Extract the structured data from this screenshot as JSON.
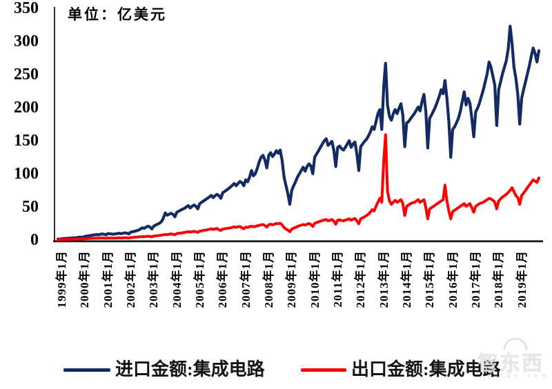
{
  "chart_data": {
    "type": "line",
    "unit_label": "单位：亿美元",
    "ylabel": "",
    "xlabel": "",
    "ylim": [
      0,
      350
    ],
    "y_ticks": [
      0,
      50,
      100,
      150,
      200,
      250,
      300,
      350
    ],
    "grid": "off",
    "legend_position": "bottom",
    "x_frequency": "monthly",
    "x_start": "1999年1月",
    "x_end": "2019年12月",
    "x_tick_labels": [
      "1999年1月",
      "2000年1月",
      "2001年1月",
      "2002年1月",
      "2003年1月",
      "2004年1月",
      "2005年1月",
      "2006年1月",
      "2007年1月",
      "2008年1月",
      "2009年1月",
      "2010年1月",
      "2011年1月",
      "2012年1月",
      "2013年1月",
      "2014年1月",
      "2015年1月",
      "2016年1月",
      "2017年1月",
      "2018年1月",
      "2019年1月"
    ],
    "series": [
      {
        "name": "进口金额:集成电路",
        "color": "#132a63",
        "values": [
          2.5,
          2.3,
          3,
          3.2,
          3.4,
          3.6,
          3.9,
          4.1,
          4.5,
          4.3,
          4.8,
          5.2,
          5.5,
          5.2,
          6.5,
          7,
          7.4,
          7.8,
          8.3,
          8.8,
          9.3,
          8.9,
          9.6,
          10.2,
          9.8,
          8.9,
          10.8,
          10.4,
          10.1,
          9.9,
          10.3,
          10.7,
          11.2,
          10.5,
          11.3,
          11.9,
          11.2,
          10.3,
          13,
          13.6,
          14.3,
          15,
          16,
          17.5,
          19.5,
          18.5,
          20.5,
          22,
          20.5,
          17.7,
          22,
          23.5,
          25,
          26.5,
          29,
          34,
          42,
          38.5,
          40,
          41.5,
          40,
          36,
          43,
          44.5,
          46,
          47.5,
          49,
          51,
          53,
          49.5,
          52,
          54,
          52,
          48,
          56,
          58,
          60,
          62,
          64,
          66,
          68.5,
          65,
          68,
          70,
          68,
          64,
          72.5,
          74.5,
          76.5,
          78.5,
          81,
          83.5,
          86.5,
          83,
          86.5,
          89.5,
          87.5,
          83,
          92,
          89,
          96,
          106,
          98,
          101,
          109,
          119,
          126,
          129,
          122,
          110,
          129,
          133,
          127,
          131,
          136,
          132,
          137,
          121,
          96,
          83,
          71,
          55,
          76,
          83,
          89,
          96,
          101,
          106,
          111,
          105,
          112,
          116,
          113,
          101,
          126,
          131,
          136,
          141,
          146,
          151,
          154,
          144,
          147,
          150,
          136,
          112,
          141,
          143,
          139,
          137,
          141,
          146,
          151,
          141,
          146,
          149,
          131,
          106,
          142,
          146,
          150,
          153,
          158,
          164,
          172,
          168,
          180,
          192,
          198,
          168,
          232,
          268,
          205,
          188,
          182,
          192,
          198,
          192,
          200,
          207,
          190,
          142,
          178,
          180,
          184,
          188,
          192,
          197,
          202,
          196,
          210,
          221,
          195,
          140,
          185,
          190,
          196,
          202,
          210,
          218,
          228,
          222,
          242,
          215,
          180,
          126,
          168,
          172,
          178,
          185,
          195,
          210,
          225,
          205,
          215,
          208,
          185,
          157,
          195,
          200,
          208,
          218,
          228,
          240,
          252,
          270,
          262,
          248,
          235,
          174,
          228,
          240,
          252,
          262,
          272,
          290,
          324,
          298,
          262,
          245,
          220,
          176,
          215,
          228,
          240,
          252,
          264,
          278,
          291,
          283,
          270,
          287
        ]
      },
      {
        "name": "出口金额:集成电路",
        "color": "#fe0000",
        "values": [
          1.5,
          1.4,
          1.8,
          1.9,
          2,
          2.1,
          2.2,
          2.3,
          2.5,
          2.4,
          2.6,
          2.8,
          2.6,
          2.5,
          3,
          3.1,
          3.3,
          3.4,
          3.6,
          3.8,
          4,
          3.8,
          4.1,
          4.3,
          4,
          3.6,
          4.2,
          4.1,
          4,
          3.9,
          4,
          4.2,
          4.4,
          4.1,
          4.4,
          4.6,
          4.4,
          4,
          4.8,
          5,
          5.2,
          5.4,
          5.7,
          6,
          6.3,
          6,
          6.5,
          6.8,
          6.4,
          5.8,
          7,
          7.3,
          7.6,
          8,
          8.4,
          8.9,
          9.5,
          9,
          9.8,
          10.3,
          9.8,
          9,
          10.8,
          11.2,
          11.6,
          12,
          12.5,
          13,
          13.8,
          13,
          13.6,
          14.2,
          13.5,
          12.5,
          14.5,
          15,
          15.5,
          16,
          16.6,
          17.2,
          18,
          17,
          17.8,
          18.5,
          16.5,
          15.5,
          17.5,
          18,
          18.5,
          19,
          19.5,
          20,
          21,
          20,
          21,
          21.5,
          19.5,
          18,
          20.5,
          20,
          21,
          22,
          21,
          21.5,
          22.5,
          23,
          24,
          24.5,
          23,
          20.5,
          24,
          25,
          24,
          25,
          26,
          25.5,
          26.5,
          24,
          20,
          17.5,
          16,
          13.5,
          17.5,
          19,
          20,
          21.5,
          22.5,
          23.5,
          24.5,
          23.5,
          25,
          26,
          24.5,
          21.5,
          26.5,
          27.5,
          28.5,
          29.5,
          30.5,
          31.5,
          32,
          30,
          31,
          32,
          29.5,
          25,
          31,
          31.5,
          30.5,
          30,
          31,
          32,
          33,
          31,
          32.5,
          33.5,
          30,
          25.5,
          33,
          34.5,
          36,
          38,
          40,
          43,
          47,
          45,
          52,
          58,
          64,
          58,
          120,
          160,
          75,
          60,
          55,
          58,
          61,
          58,
          60,
          62,
          56,
          38,
          52,
          54,
          56,
          57,
          58,
          60,
          62,
          58,
          60,
          62,
          50,
          33,
          48,
          50,
          52,
          54,
          56,
          58,
          60,
          62,
          84,
          60,
          45,
          33,
          44,
          46,
          48,
          50,
          52,
          54,
          56,
          52,
          54,
          56,
          50,
          43,
          52,
          54,
          56,
          57,
          58,
          60,
          62,
          64,
          63,
          61,
          58,
          48,
          60,
          63,
          66,
          68,
          70,
          73,
          76,
          80,
          74,
          68,
          65,
          55,
          68,
          72,
          76,
          80,
          84,
          88,
          92,
          90,
          88,
          95
        ]
      }
    ],
    "axis_color": "#1a1a1a"
  },
  "watermark": {
    "text": "智东西",
    "subtext": "z h i d x . c o m"
  }
}
